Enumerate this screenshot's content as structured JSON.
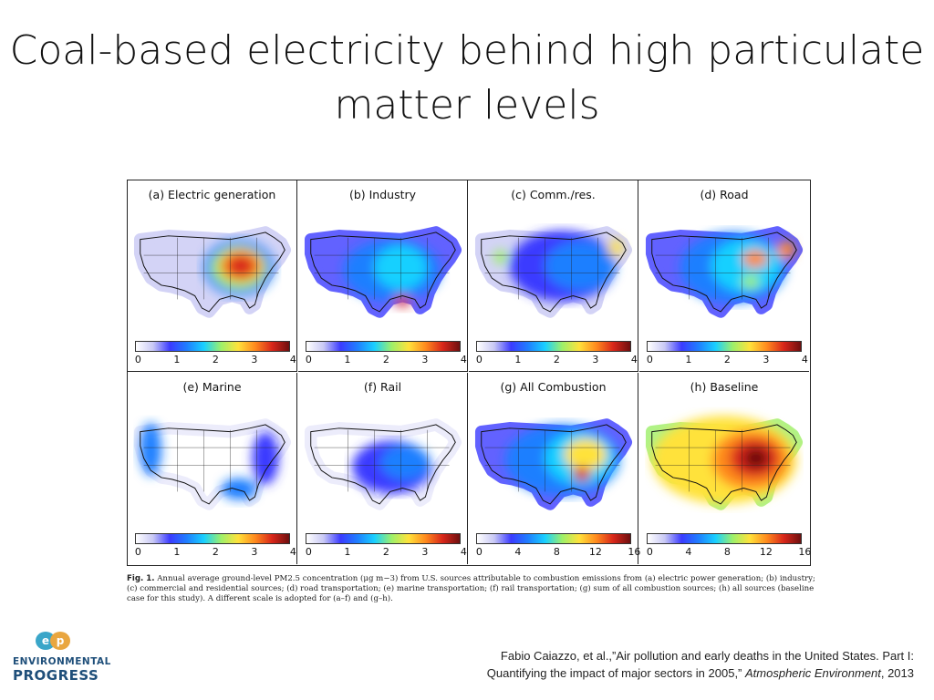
{
  "slide": {
    "title_line1": "Coal-based electricity behind high particulate",
    "title_line2": "matter levels"
  },
  "figure": {
    "panels": [
      {
        "label": "(a) Electric generation",
        "ticks": [
          "0",
          "1",
          "2",
          "3",
          "4"
        ],
        "scale": "0-4"
      },
      {
        "label": "(b) Industry",
        "ticks": [
          "0",
          "1",
          "2",
          "3",
          "4"
        ],
        "scale": "0-4"
      },
      {
        "label": "(c) Comm./res.",
        "ticks": [
          "0",
          "1",
          "2",
          "3",
          "4"
        ],
        "scale": "0-4"
      },
      {
        "label": "(d) Road",
        "ticks": [
          "0",
          "1",
          "2",
          "3",
          "4"
        ],
        "scale": "0-4"
      },
      {
        "label": "(e) Marine",
        "ticks": [
          "0",
          "1",
          "2",
          "3",
          "4"
        ],
        "scale": "0-4"
      },
      {
        "label": "(f) Rail",
        "ticks": [
          "0",
          "1",
          "2",
          "3",
          "4"
        ],
        "scale": "0-4"
      },
      {
        "label": "(g)  All Combustion",
        "ticks": [
          "0",
          "4",
          "8",
          "12",
          "16"
        ],
        "scale": "0-16"
      },
      {
        "label": "(h) Baseline",
        "ticks": [
          "0",
          "4",
          "8",
          "12",
          "16"
        ],
        "scale": "0-16"
      }
    ],
    "colormap": [
      "#ffffff",
      "#c9c9f5",
      "#3b3bff",
      "#1f7fff",
      "#19d0ff",
      "#9df06a",
      "#ffe23b",
      "#ff8a1e",
      "#d8261a",
      "#6e0f0f"
    ]
  },
  "caption": {
    "label": "Fig. 1.",
    "text": "Annual average ground-level PM2.5 concentration (μg m−3) from U.S. sources attributable to combustion emissions from (a) electric power generation; (b) industry; (c) commercial and residential sources; (d) road transportation; (e) marine transportation; (f) rail transportation; (g) sum of all combustion sources; (h) all sources (baseline case for this study). A different scale is adopted for (a–f) and (g–h)."
  },
  "logo": {
    "line1": "ENVIRONMENTAL",
    "line2": "PROGRESS",
    "accent": "#3aa6c9",
    "color": "#1f4f7a"
  },
  "citation": {
    "line1": "Fabio Caiazzo, et al.,”Air pollution and early deaths in the United States. Part I:",
    "line2_prefix": "Quantifying the impact of major sectors in 2005,” ",
    "journal": "Atmospheric Environment",
    "line2_suffix": ", 2013"
  }
}
